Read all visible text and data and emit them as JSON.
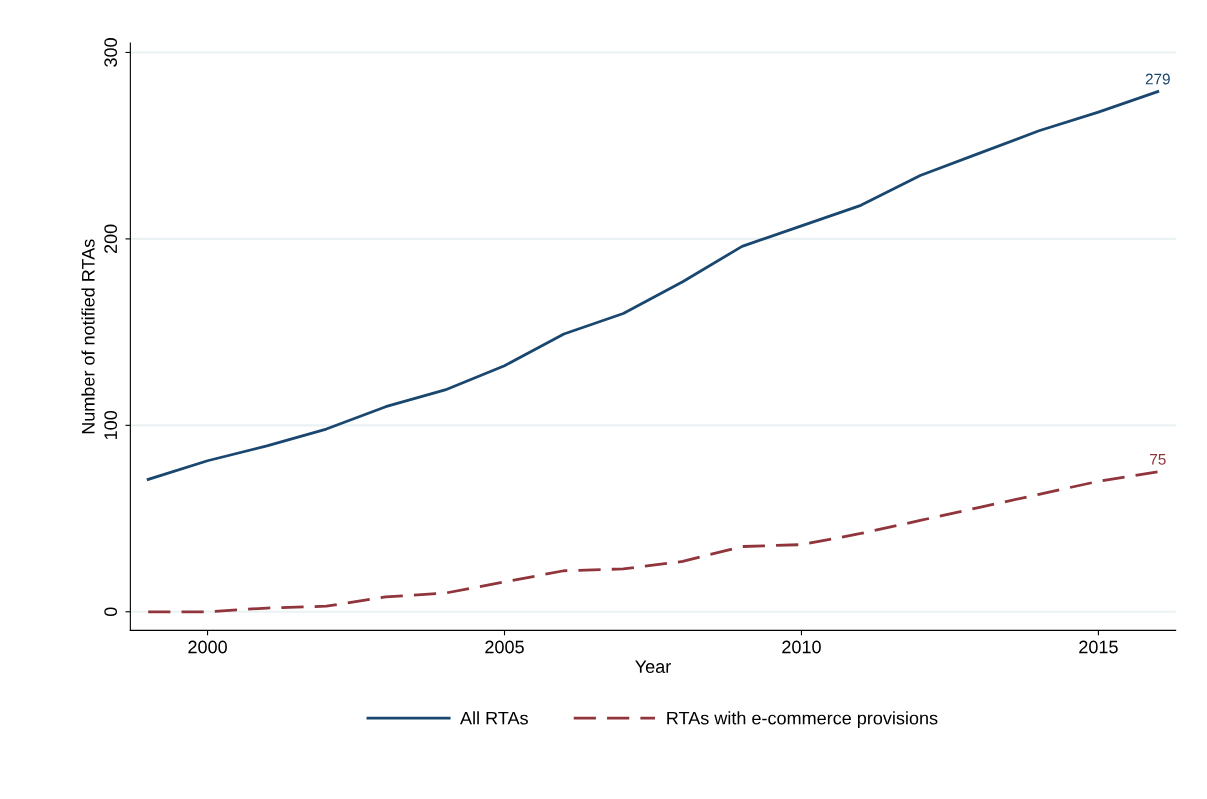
{
  "chart_data": {
    "type": "line",
    "xlabel": "Year",
    "ylabel": "Number of notified RTAs",
    "x": [
      1999,
      2000,
      2001,
      2002,
      2003,
      2004,
      2005,
      2006,
      2007,
      2008,
      2009,
      2010,
      2011,
      2012,
      2013,
      2014,
      2015,
      2016
    ],
    "series": [
      {
        "name": "All RTAs",
        "color": "#1a476f",
        "line_style": "solid",
        "values": [
          71,
          81,
          89,
          98,
          110,
          119,
          132,
          149,
          160,
          177,
          196,
          207,
          218,
          234,
          246,
          258,
          268,
          279
        ]
      },
      {
        "name": "RTAs with e-commerce provisions",
        "color": "#90353b",
        "line_style": "dashed",
        "values": [
          0,
          0,
          2,
          3,
          8,
          10,
          16,
          22,
          23,
          27,
          35,
          36,
          42,
          49,
          56,
          63,
          70,
          75
        ]
      }
    ],
    "annotations": [
      {
        "text": "279",
        "x": 2016,
        "y": 279
      },
      {
        "text": "75",
        "x": 2016,
        "y": 75
      }
    ],
    "xlim": [
      1998.7,
      2016.3
    ],
    "xticks": [
      2000,
      2005,
      2010,
      2015
    ],
    "ylim": [
      -10,
      305
    ],
    "yticks": [
      0,
      100,
      200,
      300
    ],
    "grid": "y",
    "legend": "bottom",
    "marker": "none"
  }
}
